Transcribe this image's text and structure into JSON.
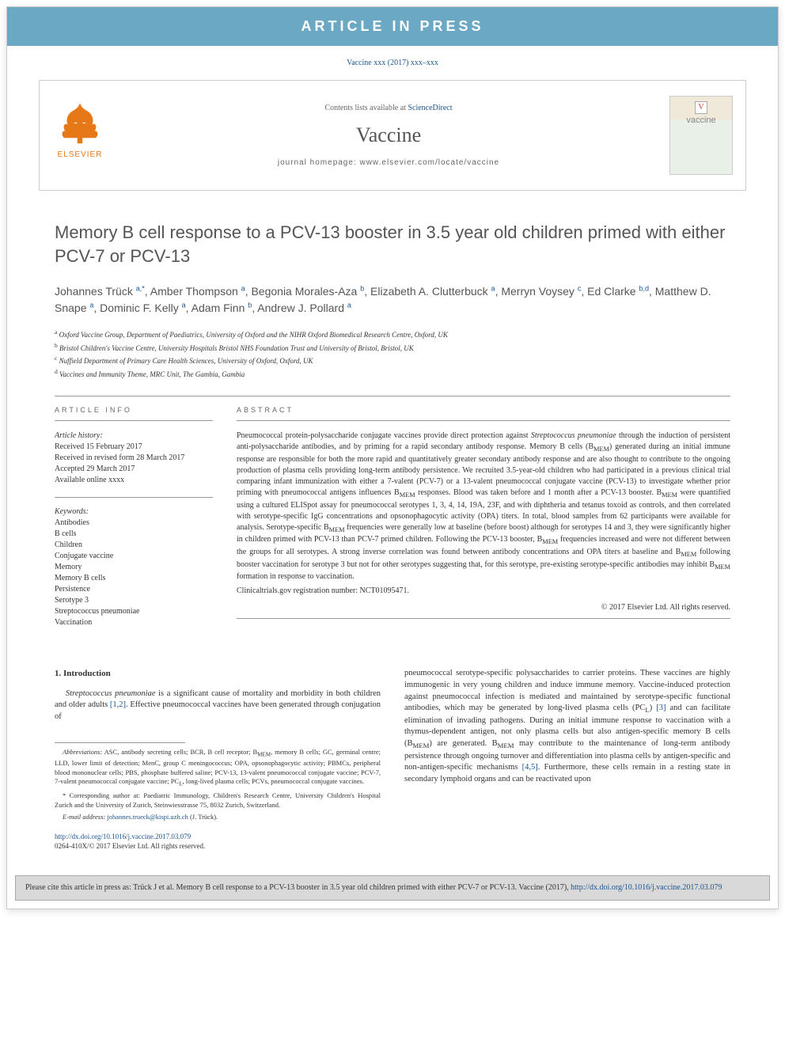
{
  "banner": "ARTICLE IN PRESS",
  "citation_line": "Vaccine xxx (2017) xxx–xxx",
  "header": {
    "contents_prefix": "Contents lists available at ",
    "contents_link": "ScienceDirect",
    "journal": "Vaccine",
    "homepage_label": "journal homepage: www.elsevier.com/locate/vaccine",
    "publisher": "ELSEVIER",
    "cover_title": "vaccine",
    "cover_v": "V"
  },
  "title": "Memory B cell response to a PCV-13 booster in 3.5 year old children primed with either PCV-7 or PCV-13",
  "authors_html": "Johannes Trück <sup>a,*</sup>, Amber Thompson <sup>a</sup>, Begonia Morales-Aza <sup>b</sup>, Elizabeth A. Clutterbuck <sup>a</sup>, Merryn Voysey <sup>c</sup>, Ed Clarke <sup>b,d</sup>, Matthew D. Snape <sup>a</sup>, Dominic F. Kelly <sup>a</sup>, Adam Finn <sup>b</sup>, Andrew J. Pollard <sup>a</sup>",
  "affiliations": [
    {
      "sup": "a",
      "text": "Oxford Vaccine Group, Department of Paediatrics, University of Oxford and the NIHR Oxford Biomedical Research Centre, Oxford, UK"
    },
    {
      "sup": "b",
      "text": "Bristol Children's Vaccine Centre, University Hospitals Bristol NHS Foundation Trust and University of Bristol, Bristol, UK"
    },
    {
      "sup": "c",
      "text": "Nuffield Department of Primary Care Health Sciences, University of Oxford, Oxford, UK"
    },
    {
      "sup": "d",
      "text": "Vaccines and Immunity Theme, MRC Unit, The Gambia, Gambia"
    }
  ],
  "info": {
    "heading": "ARTICLE INFO",
    "history_label": "Article history:",
    "history": [
      "Received 15 February 2017",
      "Received in revised form 28 March 2017",
      "Accepted 29 March 2017",
      "Available online xxxx"
    ],
    "keywords_label": "Keywords:",
    "keywords": [
      "Antibodies",
      "B cells",
      "Children",
      "Conjugate vaccine",
      "Memory",
      "Memory B cells",
      "Persistence",
      "Serotype 3",
      "Streptococcus pneumoniae",
      "Vaccination"
    ]
  },
  "abstract": {
    "heading": "ABSTRACT",
    "text": "Pneumococcal protein-polysaccharide conjugate vaccines provide direct protection against Streptococcus pneumoniae through the induction of persistent anti-polysaccharide antibodies, and by priming for a rapid secondary antibody response. Memory B cells (BMEM) generated during an initial immune response are responsible for both the more rapid and quantitatively greater secondary antibody response and are also thought to contribute to the ongoing production of plasma cells providing long-term antibody persistence. We recruited 3.5-year-old children who had participated in a previous clinical trial comparing infant immunization with either a 7-valent (PCV-7) or a 13-valent pneumococcal conjugate vaccine (PCV-13) to investigate whether prior priming with pneumococcal antigens influences BMEM responses. Blood was taken before and 1 month after a PCV-13 booster. BMEM were quantified using a cultured ELISpot assay for pneumococcal serotypes 1, 3, 4, 14, 19A, 23F, and with diphtheria and tetanus toxoid as controls, and then correlated with serotype-specific IgG concentrations and opsonophagocytic activity (OPA) titers. In total, blood samples from 62 participants were available for analysis. Serotype-specific BMEM frequencies were generally low at baseline (before boost) although for serotypes 14 and 3, they were significantly higher in children primed with PCV-13 than PCV-7 primed children. Following the PCV-13 booster, BMEM frequencies increased and were not different between the groups for all serotypes. A strong inverse correlation was found between antibody concentrations and OPA titers at baseline and BMEM following booster vaccination for serotype 3 but not for other serotypes suggesting that, for this serotype, pre-existing serotype-specific antibodies may inhibit BMEM formation in response to vaccination.",
    "registration": "Clinicaltrials.gov registration number: NCT01095471.",
    "copyright": "© 2017 Elsevier Ltd. All rights reserved."
  },
  "body": {
    "heading": "1. Introduction",
    "col1_p1": "Streptococcus pneumoniae is a significant cause of mortality and morbidity in both children and older adults [1,2]. Effective pneumococcal vaccines have been generated through conjugation of",
    "col2_p1": "pneumococcal serotype-specific polysaccharides to carrier proteins. These vaccines are highly immunogenic in very young children and induce immune memory. Vaccine-induced protection against pneumococcal infection is mediated and maintained by serotype-specific functional antibodies, which may be generated by long-lived plasma cells (PCL) [3] and can facilitate elimination of invading pathogens. During an initial immune response to vaccination with a thymus-dependent antigen, not only plasma cells but also antigen-specific memory B cells (BMEM) are generated. BMEM may contribute to the maintenance of long-term antibody persistence through ongoing turnover and differentiation into plasma cells by antigen-specific and non-antigen-specific mechanisms [4,5]. Furthermore, these cells remain in a resting state in secondary lymphoid organs and can be reactivated upon"
  },
  "footnotes": {
    "abbrev": "Abbreviations: ASC, antibody secreting cells; BCR, B cell receptor; BMEM, memory B cells; GC, germinal centre; LLD, lower limit of detection; MenC, group C meningococcus; OPA, opsonophagocytic activity; PBMCs, peripheral blood mononuclear cells; PBS, phosphate buffered saline; PCV-13, 13-valent pneumococcal conjugate vaccine; PCV-7, 7-valent pneumococcal conjugate vaccine; PCL, long-lived plasma cells; PCVs, pneumococcal conjugate vaccines.",
    "corr": "* Corresponding author at: Paediatric Immunology, Children's Research Centre, University Children's Hospital Zurich and the University of Zurich, Steinwiesstrasse 75, 8032 Zurich, Switzerland.",
    "email_label": "E-mail address: ",
    "email": "johannes.trueck@kispi.uzh.ch",
    "email_suffix": " (J. Trück)."
  },
  "doi": {
    "url": "http://dx.doi.org/10.1016/j.vaccine.2017.03.079",
    "copyright": "0264-410X/© 2017 Elsevier Ltd. All rights reserved."
  },
  "cite_footer": {
    "text_prefix": "Please cite this article in press as: Trück J et al. Memory B cell response to a PCV-13 booster in 3.5 year old children primed with either PCV-7 or PCV-13. Vaccine (2017), ",
    "link": "http://dx.doi.org/10.1016/j.vaccine.2017.03.079"
  }
}
